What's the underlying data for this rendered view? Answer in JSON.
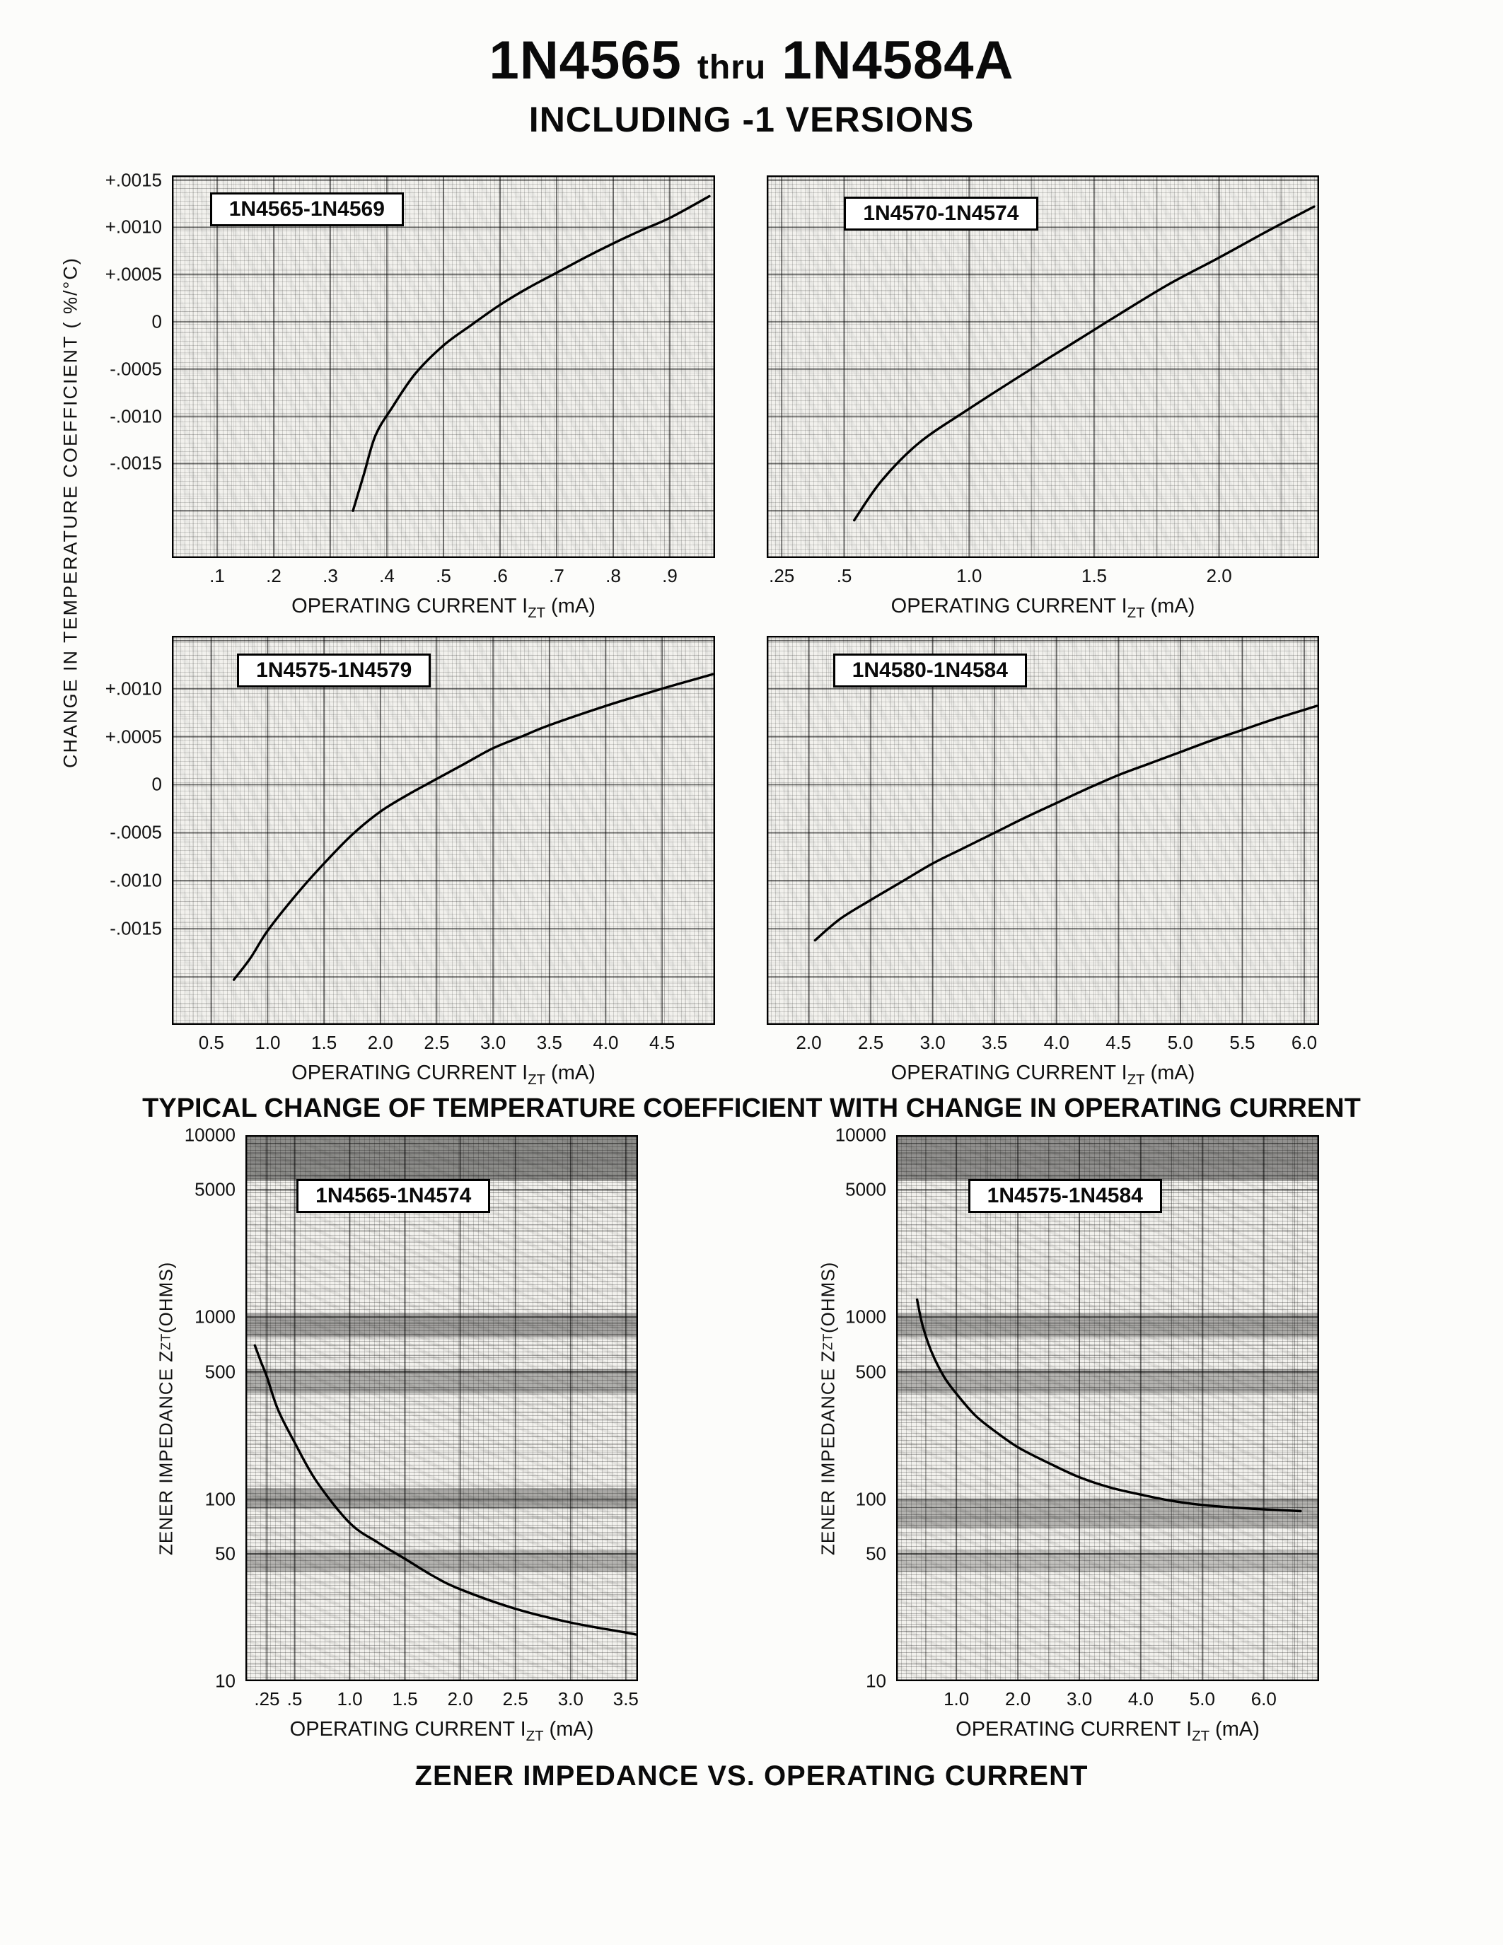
{
  "page": {
    "title_part1": "1N4565",
    "title_thru": "thru",
    "title_part2": "1N4584A",
    "subtitle": "INCLUDING -1 VERSIONS",
    "left_axis_label": "CHANGE IN TEMPERATURE COEFFICIENT ( %/°C)",
    "caption_tc": "TYPICAL CHANGE OF TEMPERATURE COEFFICIENT WITH CHANGE IN OPERATING CURRENT",
    "caption_zz": "ZENER IMPEDANCE VS. OPERATING CURRENT"
  },
  "chart_data": [
    {
      "id": "tc-1n4565-1n4569",
      "type": "line",
      "series_label": "1N4565-1N4569",
      "xlabel": {
        "prefix": "OPERATING CURRENT I",
        "sub": "ZT",
        "suffix": " (mA)"
      },
      "yscale": "linear",
      "xlim": [
        0.02,
        0.98
      ],
      "ylim": [
        -0.0025,
        0.00155
      ],
      "xticks": [
        {
          "v": 0.1,
          "label": ".1"
        },
        {
          "v": 0.2,
          "label": ".2"
        },
        {
          "v": 0.3,
          "label": ".3"
        },
        {
          "v": 0.4,
          "label": ".4"
        },
        {
          "v": 0.5,
          "label": ".5"
        },
        {
          "v": 0.6,
          "label": ".6"
        },
        {
          "v": 0.7,
          "label": ".7"
        },
        {
          "v": 0.8,
          "label": ".8"
        },
        {
          "v": 0.9,
          "label": ".9"
        }
      ],
      "yticks": [
        {
          "v": 0.0015,
          "label": "+.0015"
        },
        {
          "v": 0.001,
          "label": "+.0010"
        },
        {
          "v": 0.0005,
          "label": "+.0005"
        },
        {
          "v": 0,
          "label": "0"
        },
        {
          "v": -0.0005,
          "label": "-.0005"
        },
        {
          "v": -0.001,
          "label": "-.0010"
        },
        {
          "v": -0.0015,
          "label": "-.0015"
        }
      ],
      "ygrid": [
        0.0015,
        0.001,
        0.0005,
        0,
        -0.0005,
        -0.001,
        -0.0015,
        -0.002
      ],
      "points": [
        [
          0.34,
          -0.002
        ],
        [
          0.36,
          -0.0016
        ],
        [
          0.38,
          -0.0012
        ],
        [
          0.41,
          -0.0009
        ],
        [
          0.45,
          -0.00055
        ],
        [
          0.5,
          -0.00025
        ],
        [
          0.55,
          -3e-05
        ],
        [
          0.6,
          0.00018
        ],
        [
          0.65,
          0.00036
        ],
        [
          0.7,
          0.00052
        ],
        [
          0.75,
          0.00068
        ],
        [
          0.8,
          0.00083
        ],
        [
          0.85,
          0.00097
        ],
        [
          0.9,
          0.0011
        ],
        [
          0.97,
          0.00133
        ]
      ],
      "label_box": [
        0.07,
        0.045
      ]
    },
    {
      "id": "tc-1n4570-1n4574",
      "type": "line",
      "series_label": "1N4570-1N4574",
      "xlabel": {
        "prefix": "OPERATING CURRENT I",
        "sub": "ZT",
        "suffix": " (mA)"
      },
      "yscale": "linear",
      "xlim": [
        0.19,
        2.4
      ],
      "ylim": [
        -0.0025,
        0.00155
      ],
      "xticks": [
        {
          "v": 0.25,
          "label": ".25"
        },
        {
          "v": 0.5,
          "label": ".5"
        },
        {
          "v": 1,
          "label": "1.0"
        },
        {
          "v": 1.5,
          "label": "1.5"
        },
        {
          "v": 2,
          "label": "2.0"
        }
      ],
      "yticks": [],
      "xgrid": [
        0.75,
        1.25,
        1.75,
        2.25
      ],
      "ygrid": [
        0.0015,
        0.001,
        0.0005,
        0,
        -0.0005,
        -0.001,
        -0.0015,
        -0.002
      ],
      "points": [
        [
          0.54,
          -0.0021
        ],
        [
          0.65,
          -0.00168
        ],
        [
          0.8,
          -0.00128
        ],
        [
          1.0,
          -0.00092
        ],
        [
          1.2,
          -0.00058
        ],
        [
          1.4,
          -0.00025
        ],
        [
          1.6,
          8e-05
        ],
        [
          1.8,
          0.0004
        ],
        [
          2.0,
          0.00068
        ],
        [
          2.2,
          0.00097
        ],
        [
          2.38,
          0.00122
        ]
      ],
      "label_box": [
        0.14,
        0.055
      ]
    },
    {
      "id": "tc-1n4575-1n4579",
      "type": "line",
      "series_label": "1N4575-1N4579",
      "xlabel": {
        "prefix": "OPERATING CURRENT I",
        "sub": "ZT",
        "suffix": " (mA)"
      },
      "yscale": "linear",
      "xlim": [
        0.15,
        4.97
      ],
      "ylim": [
        -0.0025,
        0.00155
      ],
      "xticks": [
        {
          "v": 0.5,
          "label": "0.5"
        },
        {
          "v": 1,
          "label": "1.0"
        },
        {
          "v": 1.5,
          "label": "1.5"
        },
        {
          "v": 2,
          "label": "2.0"
        },
        {
          "v": 2.5,
          "label": "2.5"
        },
        {
          "v": 3,
          "label": "3.0"
        },
        {
          "v": 3.5,
          "label": "3.5"
        },
        {
          "v": 4,
          "label": "4.0"
        },
        {
          "v": 4.5,
          "label": "4.5"
        }
      ],
      "yticks": [
        {
          "v": 0.001,
          "label": "+.0010"
        },
        {
          "v": 0.0005,
          "label": "+.0005"
        },
        {
          "v": 0,
          "label": "0"
        },
        {
          "v": -0.0005,
          "label": "-.0005"
        },
        {
          "v": -0.001,
          "label": "-.0010"
        },
        {
          "v": -0.0015,
          "label": "-.0015"
        }
      ],
      "ygrid": [
        0.0015,
        0.001,
        0.0005,
        0,
        -0.0005,
        -0.001,
        -0.0015,
        -0.002
      ],
      "points": [
        [
          0.7,
          -0.00203
        ],
        [
          0.85,
          -0.0018
        ],
        [
          1.0,
          -0.00152
        ],
        [
          1.25,
          -0.00115
        ],
        [
          1.5,
          -0.00082
        ],
        [
          1.75,
          -0.00052
        ],
        [
          2.0,
          -0.00028
        ],
        [
          2.25,
          -0.0001
        ],
        [
          2.5,
          6e-05
        ],
        [
          2.75,
          0.00022
        ],
        [
          3.0,
          0.00038
        ],
        [
          3.25,
          0.0005
        ],
        [
          3.5,
          0.00062
        ],
        [
          4.0,
          0.00082
        ],
        [
          4.5,
          0.001
        ],
        [
          4.95,
          0.00115
        ]
      ],
      "label_box": [
        0.12,
        0.045
      ]
    },
    {
      "id": "tc-1n4580-1n4584",
      "type": "line",
      "series_label": "1N4580-1N4584",
      "xlabel": {
        "prefix": "OPERATING CURRENT I",
        "sub": "ZT",
        "suffix": " (mA)"
      },
      "yscale": "linear",
      "xlim": [
        1.66,
        6.12
      ],
      "ylim": [
        -0.0025,
        0.00155
      ],
      "xticks": [
        {
          "v": 2,
          "label": "2.0"
        },
        {
          "v": 2.5,
          "label": "2.5"
        },
        {
          "v": 3,
          "label": "3.0"
        },
        {
          "v": 3.5,
          "label": "3.5"
        },
        {
          "v": 4,
          "label": "4.0"
        },
        {
          "v": 4.5,
          "label": "4.5"
        },
        {
          "v": 5,
          "label": "5.0"
        },
        {
          "v": 5.5,
          "label": "5.5"
        },
        {
          "v": 6,
          "label": "6.0"
        }
      ],
      "yticks": [],
      "ygrid": [
        0.0015,
        0.001,
        0.0005,
        0,
        -0.0005,
        -0.001,
        -0.0015,
        -0.002
      ],
      "points": [
        [
          2.05,
          -0.00162
        ],
        [
          2.25,
          -0.0014
        ],
        [
          2.5,
          -0.0012
        ],
        [
          2.75,
          -0.00101
        ],
        [
          3.0,
          -0.00082
        ],
        [
          3.25,
          -0.00066
        ],
        [
          3.5,
          -0.0005
        ],
        [
          3.75,
          -0.00034
        ],
        [
          4.0,
          -0.00019
        ],
        [
          4.25,
          -4e-05
        ],
        [
          4.5,
          0.0001
        ],
        [
          4.75,
          0.00022
        ],
        [
          5.0,
          0.00034
        ],
        [
          5.25,
          0.00046
        ],
        [
          5.5,
          0.00057
        ],
        [
          5.75,
          0.00068
        ],
        [
          6.0,
          0.00078
        ],
        [
          6.1,
          0.00082
        ]
      ],
      "label_box": [
        0.12,
        0.045
      ]
    },
    {
      "id": "zz-1n4565-1n4574",
      "type": "line",
      "series_label": "1N4565-1N4574",
      "xlabel": {
        "prefix": "OPERATING CURRENT I",
        "sub": "ZT",
        "suffix": " (mA)"
      },
      "ylabel": {
        "prefix": "ZENER IMPEDANCE Z",
        "sub": "ZT",
        "suffix": " (OHMS)"
      },
      "yscale": "log",
      "xlim": [
        0.055,
        3.61
      ],
      "ylim": [
        10,
        10000
      ],
      "xticks": [
        {
          "v": 0.25,
          "label": ".25"
        },
        {
          "v": 0.5,
          "label": ".5"
        },
        {
          "v": 1,
          "label": "1.0"
        },
        {
          "v": 1.5,
          "label": "1.5"
        },
        {
          "v": 2,
          "label": "2.0"
        },
        {
          "v": 2.5,
          "label": "2.5"
        },
        {
          "v": 3,
          "label": "3.0"
        },
        {
          "v": 3.5,
          "label": "3.5"
        }
      ],
      "yticks": [
        {
          "v": 10000,
          "label": "10000"
        },
        {
          "v": 5000,
          "label": "5000"
        },
        {
          "v": 1000,
          "label": "1000"
        },
        {
          "v": 500,
          "label": "500"
        },
        {
          "v": 100,
          "label": "100"
        },
        {
          "v": 50,
          "label": "50"
        },
        {
          "v": 10,
          "label": "10"
        }
      ],
      "ygrid": [
        10000,
        5000,
        1000,
        500,
        100,
        50,
        10
      ],
      "points": [
        [
          0.14,
          700
        ],
        [
          0.2,
          560
        ],
        [
          0.25,
          470
        ],
        [
          0.35,
          310
        ],
        [
          0.5,
          205
        ],
        [
          0.7,
          125
        ],
        [
          1.0,
          74
        ],
        [
          1.25,
          58
        ],
        [
          1.5,
          47
        ],
        [
          1.75,
          38
        ],
        [
          2.0,
          32
        ],
        [
          2.5,
          25
        ],
        [
          3.0,
          21
        ],
        [
          3.5,
          18.5
        ],
        [
          3.6,
          18
        ]
      ],
      "smudge_bands": [
        [
          5600,
          10000,
          0.42
        ],
        [
          780,
          1050,
          0.33
        ],
        [
          380,
          520,
          0.28
        ],
        [
          88,
          115,
          0.3
        ],
        [
          40,
          52,
          0.26
        ]
      ],
      "label_box": [
        0.13,
        0.08
      ]
    },
    {
      "id": "zz-1n4575-1n4584",
      "type": "line",
      "series_label": "1N4575-1N4584",
      "xlabel": {
        "prefix": "OPERATING CURRENT I",
        "sub": "ZT",
        "suffix": " (mA)"
      },
      "ylabel": {
        "prefix": "ZENER IMPEDANCE Z",
        "sub": "ZT",
        "suffix": " (OHMS)"
      },
      "yscale": "log",
      "xlim": [
        0.02,
        6.9
      ],
      "ylim": [
        10,
        10000
      ],
      "xticks": [
        {
          "v": 1,
          "label": "1.0"
        },
        {
          "v": 2,
          "label": "2.0"
        },
        {
          "v": 3,
          "label": "3.0"
        },
        {
          "v": 4,
          "label": "4.0"
        },
        {
          "v": 5,
          "label": "5.0"
        },
        {
          "v": 6,
          "label": "6.0"
        }
      ],
      "yticks": [
        {
          "v": 10000,
          "label": "10000"
        },
        {
          "v": 5000,
          "label": "5000"
        },
        {
          "v": 1000,
          "label": "1000"
        },
        {
          "v": 500,
          "label": "500"
        },
        {
          "v": 100,
          "label": "100"
        },
        {
          "v": 50,
          "label": "50"
        },
        {
          "v": 10,
          "label": "10"
        }
      ],
      "xgrid": [
        0.5,
        1.5,
        2.5,
        3.5,
        4.5,
        5.5,
        6.5
      ],
      "ygrid": [
        10000,
        5000,
        1000,
        500,
        100,
        50,
        10
      ],
      "points": [
        [
          0.36,
          1250
        ],
        [
          0.45,
          900
        ],
        [
          0.6,
          640
        ],
        [
          0.8,
          470
        ],
        [
          1.0,
          380
        ],
        [
          1.3,
          290
        ],
        [
          1.6,
          240
        ],
        [
          2.0,
          193
        ],
        [
          2.5,
          158
        ],
        [
          3.0,
          132
        ],
        [
          3.5,
          116
        ],
        [
          4.0,
          106
        ],
        [
          4.5,
          98
        ],
        [
          5.0,
          93
        ],
        [
          5.5,
          90
        ],
        [
          6.0,
          88
        ],
        [
          6.6,
          86
        ]
      ],
      "smudge_bands": [
        [
          5600,
          10000,
          0.4
        ],
        [
          780,
          1050,
          0.3
        ],
        [
          380,
          520,
          0.26
        ],
        [
          70,
          100,
          0.26
        ],
        [
          40,
          52,
          0.2
        ]
      ],
      "label_box": [
        0.17,
        0.08
      ]
    }
  ]
}
